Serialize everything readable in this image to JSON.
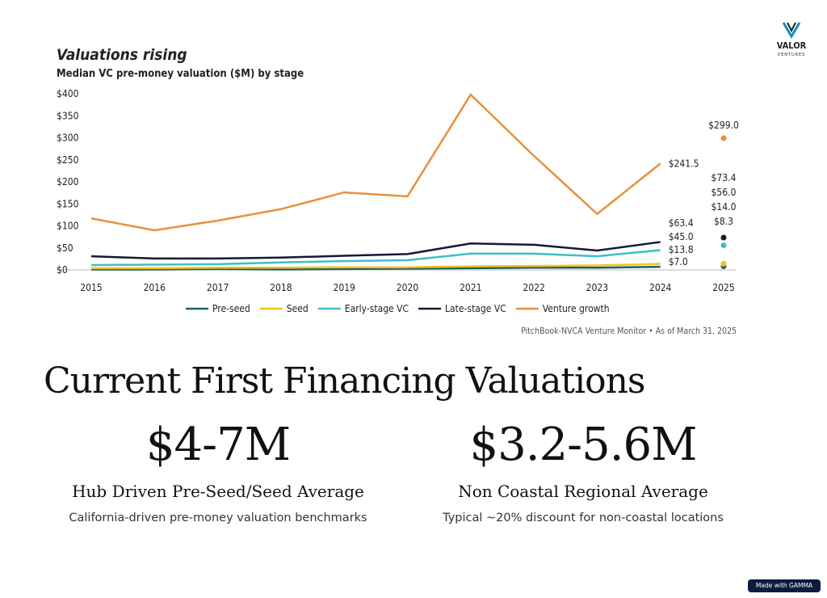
{
  "chart_data": {
    "type": "line",
    "title": "Valuations rising",
    "subtitle": "Median VC pre-money valuation ($M) by stage",
    "source": "PitchBook-NVCA Venture Monitor  •  As of March 31, 2025",
    "categories": [
      "2015",
      "2016",
      "2017",
      "2018",
      "2019",
      "2020",
      "2021",
      "2022",
      "2023",
      "2024",
      "2025"
    ],
    "ylim": [
      0,
      400
    ],
    "yticks": [
      {
        "value": 0,
        "label": "$0"
      },
      {
        "value": 50,
        "label": "$50"
      },
      {
        "value": 100,
        "label": "$100"
      },
      {
        "value": 150,
        "label": "$150"
      },
      {
        "value": 200,
        "label": "$200"
      },
      {
        "value": 250,
        "label": "$250"
      },
      {
        "value": 300,
        "label": "$300"
      },
      {
        "value": 350,
        "label": "$350"
      },
      {
        "value": 400,
        "label": "$400"
      }
    ],
    "grid": false,
    "series": [
      {
        "name": "Pre-seed",
        "color": "#1f5f6b",
        "values": [
          1,
          1,
          2,
          1,
          2,
          3,
          4,
          5,
          5,
          7.0,
          8.3
        ],
        "value_labels": [
          null,
          null,
          null,
          null,
          null,
          null,
          null,
          null,
          null,
          "$7.0",
          "$8.3"
        ]
      },
      {
        "name": "Seed",
        "color": "#f2c31b",
        "values": [
          4,
          4,
          5,
          5,
          6,
          6,
          8,
          9,
          10,
          13.8,
          14.0
        ],
        "value_labels": [
          null,
          null,
          null,
          null,
          null,
          null,
          null,
          null,
          null,
          "$13.8",
          "$14.0"
        ]
      },
      {
        "name": "Early-stage VC",
        "color": "#3cc0c4",
        "values": [
          11,
          12,
          13,
          17,
          20,
          22,
          37,
          37,
          31,
          45.0,
          56.0
        ],
        "value_labels": [
          null,
          null,
          null,
          null,
          null,
          null,
          null,
          null,
          null,
          "$45.0",
          "$56.0"
        ]
      },
      {
        "name": "Late-stage VC",
        "color": "#131a33",
        "values": [
          31,
          26,
          26,
          28,
          32,
          36,
          60,
          57,
          44,
          63.4,
          73.4
        ],
        "value_labels": [
          null,
          null,
          null,
          null,
          null,
          null,
          null,
          null,
          null,
          "$63.4",
          "$73.4"
        ]
      },
      {
        "name": "Venture growth",
        "color": "#e8913a",
        "values": [
          117,
          90,
          112,
          138,
          176,
          167,
          398,
          259,
          127,
          241.5,
          299.0
        ],
        "value_labels": [
          null,
          null,
          null,
          null,
          null,
          null,
          null,
          null,
          null,
          "$241.5",
          "$299.0"
        ]
      }
    ]
  },
  "logo": {
    "name": "VALOR",
    "subname": "VENTURES"
  },
  "heading": "Current First Financing Valuations",
  "stats": [
    {
      "value": "$4-7M",
      "label": "Hub Driven Pre-Seed/Seed Average",
      "description": "California-driven pre-money valuation benchmarks"
    },
    {
      "value": "$3.2-5.6M",
      "label": "Non Coastal Regional Average",
      "description": "Typical ~20% discount for non-coastal locations"
    }
  ],
  "badge": "Made with GAMMA"
}
